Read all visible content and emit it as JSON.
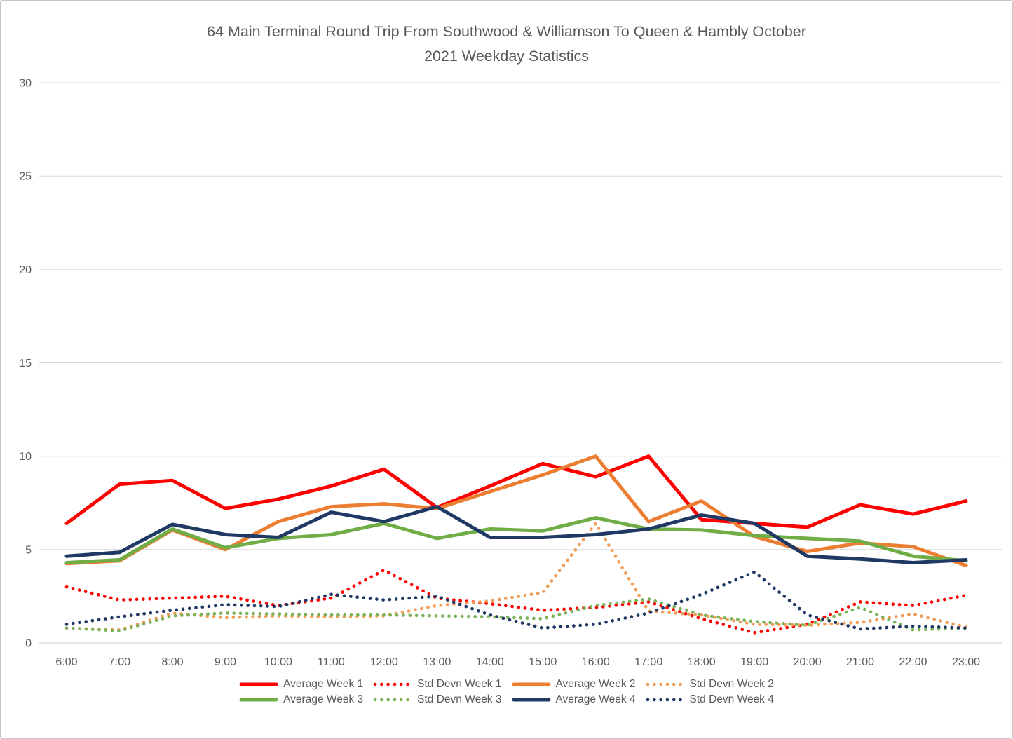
{
  "header": {
    "title_line1": "64 Main Terminal Round Trip From Southwood & Williamson To Queen & Hambly October",
    "title_line2": "2021 Weekday Statistics"
  },
  "colors": {
    "grid": "#d9d9d9",
    "axis": "#c9c9c9",
    "text": "#595959",
    "week1": "#ff0000",
    "week2": "#ed7d31",
    "week2_std": "#f09d58",
    "week3": "#70ad47",
    "week3_std": "#7db358",
    "week4": "#1f3864"
  },
  "chart_data": {
    "type": "line",
    "title": "64 Main Terminal Round Trip From Southwood & Williamson To Queen & Hambly October 2021 Weekday Statistics",
    "xlabel": "",
    "ylabel": "",
    "ylim": [
      0,
      30
    ],
    "yticks": [
      0,
      5,
      10,
      15,
      20,
      25,
      30
    ],
    "grid": "horizontal",
    "legend_position": "bottom",
    "categories": [
      "6:00",
      "7:00",
      "8:00",
      "9:00",
      "10:00",
      "11:00",
      "12:00",
      "13:00",
      "14:00",
      "15:00",
      "16:00",
      "17:00",
      "18:00",
      "19:00",
      "20:00",
      "21:00",
      "22:00",
      "23:00"
    ],
    "series": [
      {
        "name": "Average Week 1",
        "style": "solid",
        "color": "#ff0000",
        "values": [
          6.4,
          8.5,
          8.7,
          7.2,
          7.7,
          8.4,
          9.3,
          7.25,
          8.4,
          9.6,
          8.9,
          10.0,
          6.6,
          6.4,
          6.2,
          7.4,
          6.9,
          7.6
        ]
      },
      {
        "name": "Std Devn Week 1",
        "style": "dotted",
        "color": "#ff0000",
        "values": [
          3.0,
          2.3,
          2.4,
          2.5,
          2.0,
          2.4,
          3.9,
          2.4,
          2.1,
          1.75,
          1.9,
          2.2,
          1.3,
          0.55,
          1.0,
          2.2,
          2.0,
          2.55
        ]
      },
      {
        "name": "Average Week 2",
        "style": "solid",
        "color": "#ed7d31",
        "values": [
          4.25,
          4.4,
          6.05,
          5.0,
          6.5,
          7.3,
          7.45,
          7.2,
          8.1,
          9.0,
          10.0,
          6.5,
          7.6,
          5.7,
          4.9,
          5.35,
          5.15,
          4.15
        ]
      },
      {
        "name": "Std Devn Week 2",
        "style": "dotted",
        "color": "#f09d58",
        "values": [
          0.8,
          0.7,
          1.6,
          1.35,
          1.45,
          1.4,
          1.45,
          2.0,
          2.25,
          2.7,
          6.4,
          1.7,
          1.5,
          1.0,
          0.95,
          1.1,
          1.55,
          0.85
        ]
      },
      {
        "name": "Average Week 3",
        "style": "solid",
        "color": "#70ad47",
        "values": [
          4.3,
          4.45,
          6.1,
          5.1,
          5.6,
          5.8,
          6.4,
          5.6,
          6.1,
          6.0,
          6.7,
          6.1,
          6.05,
          5.75,
          5.6,
          5.45,
          4.65,
          4.4
        ]
      },
      {
        "name": "Std Devn Week 3",
        "style": "dotted",
        "color": "#7db358",
        "values": [
          0.8,
          0.65,
          1.45,
          1.6,
          1.55,
          1.5,
          1.5,
          1.45,
          1.4,
          1.3,
          2.0,
          2.35,
          1.5,
          1.15,
          0.95,
          1.9,
          0.7,
          0.8
        ]
      },
      {
        "name": "Average Week 4",
        "style": "solid",
        "color": "#1f3864",
        "values": [
          4.65,
          4.85,
          6.35,
          5.8,
          5.65,
          7.0,
          6.5,
          7.3,
          5.65,
          5.65,
          5.8,
          6.1,
          6.85,
          6.4,
          4.65,
          4.5,
          4.3,
          4.45
        ]
      },
      {
        "name": "Std Devn Week 4",
        "style": "dotted",
        "color": "#1f3864",
        "values": [
          1.0,
          1.4,
          1.75,
          2.05,
          1.95,
          2.6,
          2.3,
          2.5,
          1.5,
          0.8,
          1.0,
          1.6,
          2.6,
          3.8,
          1.5,
          0.75,
          0.9,
          0.8
        ]
      }
    ],
    "legend_rows": [
      [
        0,
        1,
        2,
        3
      ],
      [
        4,
        5,
        6,
        7
      ]
    ]
  }
}
